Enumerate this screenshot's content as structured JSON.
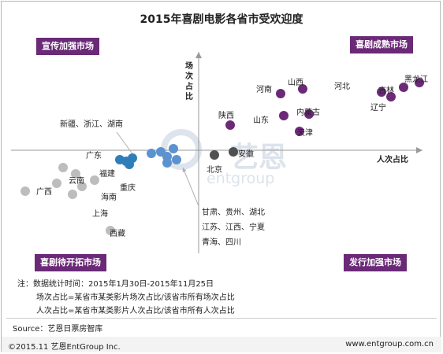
{
  "chart_data": {
    "type": "scatter",
    "title": "2015年喜剧电影各省市受欢迎度",
    "xlabel": "人次占比",
    "ylabel": "场次占比",
    "quadrants": {
      "top_left": "宣传加强市场",
      "top_right": "喜剧成熟市场",
      "bottom_left": "喜剧待开拓市场",
      "bottom_right": "发行加强市场"
    },
    "series": [
      {
        "color": "#6b2a77",
        "points": [
          {
            "label": "黑龙江",
            "x": 7.0,
            "y": 4.3
          },
          {
            "label": "吉林",
            "x": 6.5,
            "y": 4.0
          },
          {
            "label": "河北",
            "x": 5.8,
            "y": 3.7
          },
          {
            "label": "辽宁",
            "x": 6.1,
            "y": 3.4
          },
          {
            "label": "河南",
            "x": 2.6,
            "y": 3.6
          },
          {
            "label": "山西",
            "x": 3.3,
            "y": 3.9
          },
          {
            "label": "内蒙古",
            "x": 3.5,
            "y": 2.3
          },
          {
            "label": "山东",
            "x": 2.7,
            "y": 2.2
          },
          {
            "label": "天津",
            "x": 3.2,
            "y": 1.2
          },
          {
            "label": "陕西",
            "x": 1.0,
            "y": 1.6
          }
        ]
      },
      {
        "color": "#505050",
        "points": [
          {
            "label": "北京",
            "x": 0.5,
            "y": -0.3
          },
          {
            "label": "安徽",
            "x": 1.1,
            "y": -0.1
          }
        ]
      },
      {
        "color": "#2e7fb8",
        "points": [
          {
            "x": -2.3,
            "y": -0.7
          },
          {
            "x": -2.1,
            "y": -0.5
          },
          {
            "x": -2.2,
            "y": -0.9
          },
          {
            "x": -2.5,
            "y": -0.6
          }
        ]
      },
      {
        "color": "#5b92cf",
        "points": [
          {
            "x": -1.2,
            "y": -0.1
          },
          {
            "x": -0.8,
            "y": 0.1
          },
          {
            "x": -1.0,
            "y": -0.4
          },
          {
            "x": -0.7,
            "y": -0.6
          },
          {
            "x": -1.0,
            "y": -0.8
          },
          {
            "x": -1.5,
            "y": -0.2
          }
        ]
      },
      {
        "color": "#bdbdbd",
        "points": [
          {
            "label": "广东",
            "x": -4.3,
            "y": -1.1
          },
          {
            "label": "福建",
            "x": -3.9,
            "y": -1.5
          },
          {
            "label": "云南",
            "x": -4.5,
            "y": -2.1
          },
          {
            "label": "海南",
            "x": -3.7,
            "y": -2.3
          },
          {
            "label": "重庆",
            "x": -3.3,
            "y": -1.9
          },
          {
            "label": "广西",
            "x": -5.5,
            "y": -2.6
          },
          {
            "label": "上海",
            "x": -4.0,
            "y": -2.8
          },
          {
            "label": "西藏",
            "x": -2.8,
            "y": -5.1
          }
        ]
      }
    ],
    "group_labels": [
      {
        "text": "新疆、浙江、湖南",
        "target": {
          "x": -2.0,
          "y": -0.5
        }
      },
      {
        "text": "甘肃、贵州、湖北",
        "target": {
          "x": -0.5,
          "y": -1.1
        }
      },
      {
        "text": "江苏、江西、宁夏",
        "target": null
      },
      {
        "text": "青海、四川",
        "target": null
      }
    ],
    "xlim": [
      -6.0,
      8.0
    ],
    "ylim": [
      -6.5,
      6.5
    ],
    "grid": false,
    "legend": "none"
  },
  "notes": [
    "注：数据统计时间：2015年1月30日-2015年11月25日",
    "场次占比=某省市某类影片场次占比/该省市所有场次占比",
    "人次占比=某省市某类影片人次占比/该省市所有人次占比"
  ],
  "source": "Source：艺恩日票房智库",
  "footer": {
    "left": "©2015.11 艺恩EntGroup Inc.",
    "right": "www.entgroup.com.cn"
  },
  "watermark": {
    "top": "艺恩",
    "bottom": "entgroup"
  }
}
